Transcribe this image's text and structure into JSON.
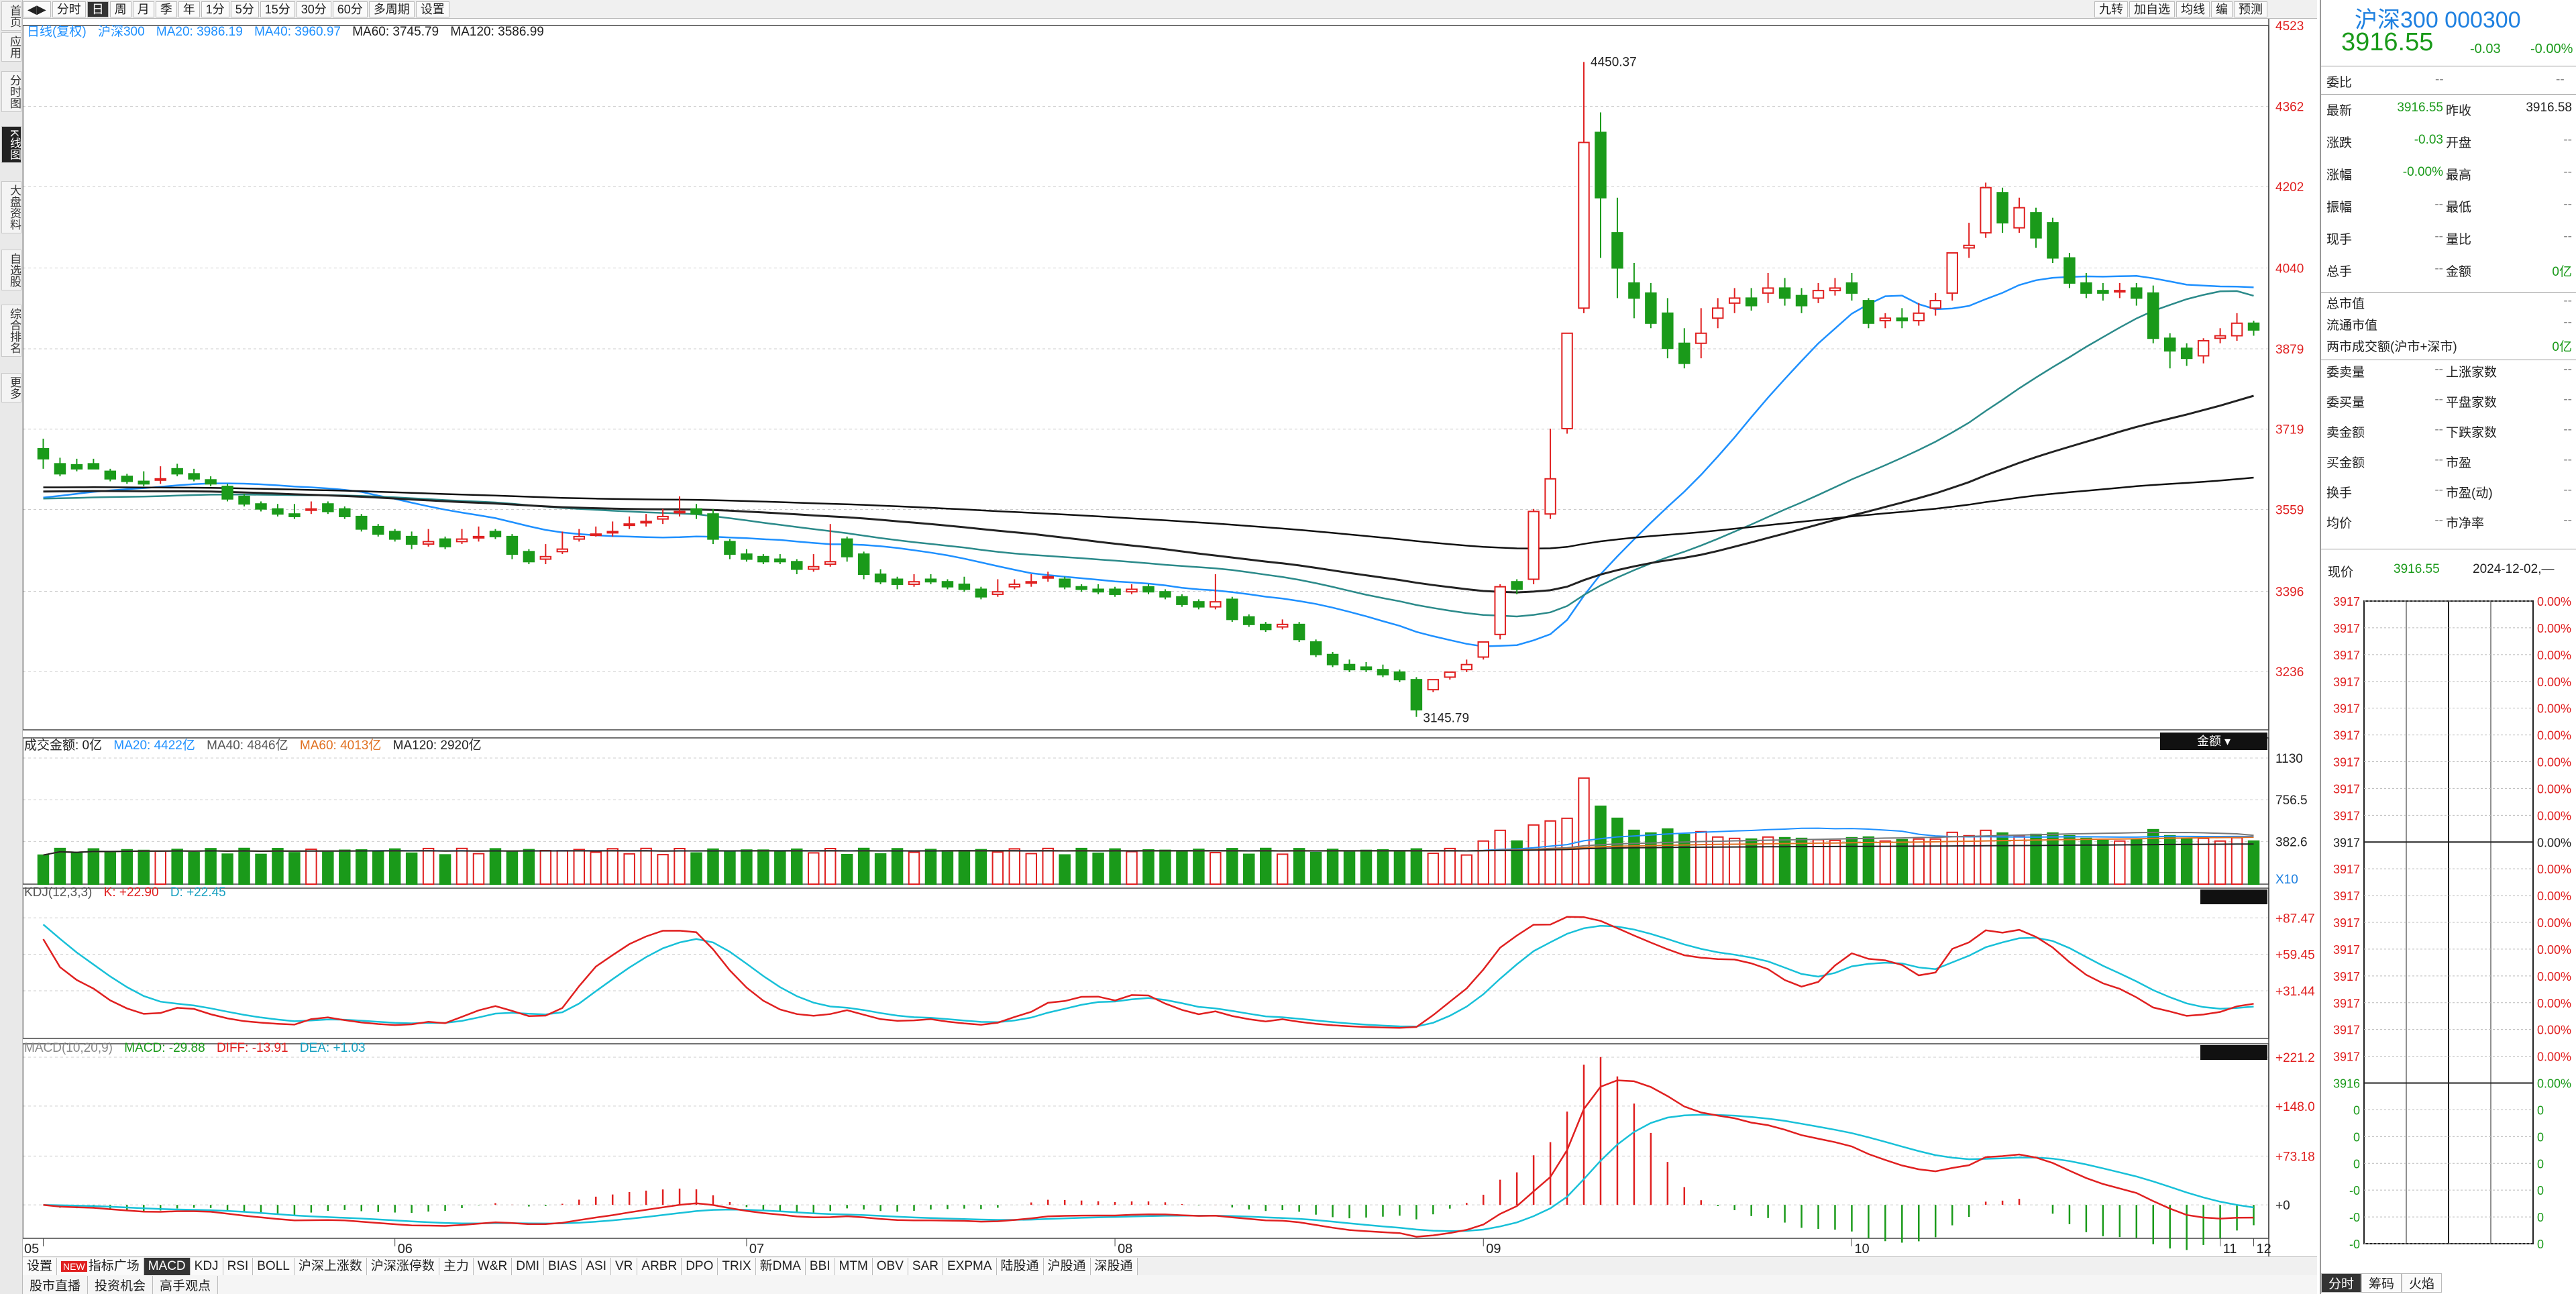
{
  "left_nav": [
    "首页",
    "应用",
    "分时图",
    "K线图",
    "大盘资料",
    "自选股",
    "综合排名",
    "更多"
  ],
  "top_periods": [
    "分时",
    "日",
    "周",
    "月",
    "季",
    "年",
    "1分",
    "5分",
    "15分",
    "30分",
    "60分",
    "多周期",
    "设置"
  ],
  "top_right_tools": [
    "九转",
    "加自选",
    "均线",
    "编",
    "预测"
  ],
  "main_legend": {
    "label": "日线(复权)",
    "name": "沪深300",
    "ma20": "MA20: 3986.19",
    "ma40": "MA40: 3960.97",
    "ma60": "MA60: 3745.79",
    "ma120": "MA120: 3586.99"
  },
  "price_axis": [
    "4523",
    "4362",
    "4202",
    "4040",
    "3879",
    "3719",
    "3559",
    "3396",
    "3236"
  ],
  "price_annotations": {
    "high": "4450.37",
    "low": "3145.79"
  },
  "volume_legend": {
    "label": "成交金额: 0亿",
    "ma20": "MA20: 4422亿",
    "ma40": "MA40: 4846亿",
    "ma60": "MA60: 4013亿",
    "ma120": "MA120: 2920亿"
  },
  "volume_axis": [
    "1130",
    "756.5",
    "382.6",
    "X10"
  ],
  "volume_unit_button": "金额",
  "kdj_legend": {
    "label": "KDJ(12,3,3)",
    "k": "K: +22.90",
    "d": "D: +22.45"
  },
  "kdj_axis": [
    "+87.47",
    "+59.45",
    "+31.44"
  ],
  "macd_legend": {
    "label": "MACD(10,20,9)",
    "macd": "MACD: -29.88",
    "diff": "DIFF: -13.91",
    "dea": "DEA: +1.03"
  },
  "macd_axis": [
    "+221.2",
    "+148.0",
    "+73.18",
    "+0"
  ],
  "month_labels": [
    "05",
    "06",
    "07",
    "08",
    "09",
    "10",
    "11",
    "12"
  ],
  "bottom_tabs": [
    "设置",
    "指标广场",
    "MACD",
    "KDJ",
    "RSI",
    "BOLL",
    "沪深上涨数",
    "沪深涨停数",
    "主力",
    "W&R",
    "DMI",
    "BIAS",
    "ASI",
    "VR",
    "ARBR",
    "DPO",
    "TRIX",
    "新DMA",
    "BBI",
    "MTM",
    "OBV",
    "SAR",
    "EXPMA",
    "陆股通",
    "沪股通",
    "深股通"
  ],
  "bottom_tabs_new_badge": "NEW",
  "bottom_links": [
    "股市直播",
    "投资机会",
    "高手观点"
  ],
  "quote": {
    "title": "沪深300 000300",
    "price": "3916.55",
    "change": "-0.03",
    "pct": "-0.00%",
    "weibi_label": "委比",
    "weibi_val": "--",
    "weicha_val": "--"
  },
  "quote_rows": [
    {
      "l": "最新",
      "v": "3916.55",
      "l2": "昨收",
      "v2": "3916.58"
    },
    {
      "l": "涨跌",
      "v": "-0.03",
      "l2": "开盘",
      "v2": "--"
    },
    {
      "l": "涨幅",
      "v": "-0.00%",
      "l2": "最高",
      "v2": "--"
    },
    {
      "l": "振幅",
      "v": "--",
      "l2": "最低",
      "v2": "--"
    },
    {
      "l": "现手",
      "v": "--",
      "l2": "量比",
      "v2": "--"
    },
    {
      "l": "总手",
      "v": "--",
      "l2": "金额",
      "v2": "0亿"
    }
  ],
  "quote_rows2": [
    {
      "l": "总市值",
      "v": "--"
    },
    {
      "l": "流通市值",
      "v": "--"
    },
    {
      "l": "两市成交额(沪市+深市)",
      "v": "0亿"
    }
  ],
  "quote_rows3": [
    {
      "l": "委卖量",
      "v": "--",
      "l2": "上涨家数",
      "v2": "--"
    },
    {
      "l": "委买量",
      "v": "--",
      "l2": "平盘家数",
      "v2": "--"
    },
    {
      "l": "卖金额",
      "v": "--",
      "l2": "下跌家数",
      "v2": "--"
    },
    {
      "l": "买金额",
      "v": "--",
      "l2": "市盈",
      "v2": "--"
    },
    {
      "l": "换手",
      "v": "--",
      "l2": "市盈(动)",
      "v2": "--"
    },
    {
      "l": "均价",
      "v": "--",
      "l2": "市净率",
      "v2": "--"
    }
  ],
  "xianjia": {
    "label": "现价",
    "value": "3916.55",
    "date": "2024-12-02,—"
  },
  "mini_axis_left": [
    "3917",
    "3917",
    "3917",
    "3917",
    "3917",
    "3917",
    "3917",
    "3917",
    "3917",
    "3917",
    "3917",
    "3917",
    "3917",
    "3917",
    "3917",
    "3917",
    "3917",
    "3917",
    "3916",
    "0",
    "0",
    "0",
    "-0",
    "-0",
    "-0"
  ],
  "mini_axis_right": [
    "0.00%",
    "0.00%",
    "0.00%",
    "0.00%",
    "0.00%",
    "0.00%",
    "0.00%",
    "0.00%",
    "0.00%",
    "0.00%",
    "0.00%",
    "0.00%",
    "0.00%",
    "0.00%",
    "0.00%",
    "0.00%",
    "0.00%",
    "0.00%",
    "0.00%",
    "0",
    "0",
    "0",
    "0",
    "0",
    "0"
  ],
  "right_bottom_tabs": [
    "分时",
    "筹码",
    "火焰"
  ],
  "colors": {
    "up": "#e02020",
    "down": "#1a9a1a",
    "ma20": "#1e90ff",
    "ma40": "#2b8a8a",
    "ma60": "#222222",
    "ma120": "#111111",
    "k": "#e02020",
    "d": "#18c0d8"
  },
  "chart_data": {
    "type": "candlestick",
    "period": "daily",
    "months": [
      "05",
      "06",
      "07",
      "08",
      "09",
      "10",
      "11",
      "12"
    ],
    "ohlc": [
      [
        3680,
        3700,
        3660,
        3640
      ],
      [
        3650,
        3662,
        3630,
        3625
      ],
      [
        3648,
        3660,
        3640,
        3635
      ],
      [
        3650,
        3660,
        3640,
        3640
      ],
      [
        3635,
        3640,
        3620,
        3615
      ],
      [
        3625,
        3630,
        3615,
        3610
      ],
      [
        3615,
        3635,
        3610,
        3605
      ],
      [
        3620,
        3645,
        3620,
        3610
      ],
      [
        3640,
        3650,
        3630,
        3625
      ],
      [
        3630,
        3640,
        3620,
        3615
      ],
      [
        3618,
        3625,
        3610,
        3605
      ],
      [
        3605,
        3610,
        3580,
        3575
      ],
      [
        3585,
        3590,
        3570,
        3565
      ],
      [
        3570,
        3575,
        3560,
        3555
      ],
      [
        3560,
        3570,
        3550,
        3545
      ],
      [
        3550,
        3570,
        3545,
        3540
      ],
      [
        3560,
        3575,
        3560,
        3550
      ],
      [
        3570,
        3575,
        3555,
        3550
      ],
      [
        3560,
        3565,
        3545,
        3540
      ],
      [
        3545,
        3550,
        3520,
        3515
      ],
      [
        3525,
        3530,
        3510,
        3505
      ],
      [
        3515,
        3520,
        3500,
        3495
      ],
      [
        3505,
        3515,
        3490,
        3480
      ],
      [
        3490,
        3520,
        3495,
        3485
      ],
      [
        3500,
        3505,
        3485,
        3480
      ],
      [
        3495,
        3520,
        3500,
        3490
      ],
      [
        3505,
        3525,
        3505,
        3495
      ],
      [
        3515,
        3520,
        3505,
        3500
      ],
      [
        3505,
        3510,
        3470,
        3460
      ],
      [
        3475,
        3480,
        3455,
        3450
      ],
      [
        3460,
        3490,
        3465,
        3450
      ],
      [
        3475,
        3515,
        3480,
        3470
      ],
      [
        3500,
        3520,
        3505,
        3495
      ],
      [
        3510,
        3525,
        3510,
        3505
      ],
      [
        3515,
        3535,
        3515,
        3505
      ],
      [
        3530,
        3545,
        3530,
        3520
      ],
      [
        3535,
        3550,
        3535,
        3525
      ],
      [
        3540,
        3560,
        3545,
        3530
      ],
      [
        3555,
        3585,
        3555,
        3545
      ],
      [
        3560,
        3570,
        3550,
        3540
      ],
      [
        3550,
        3560,
        3500,
        3490
      ],
      [
        3495,
        3500,
        3470,
        3460
      ],
      [
        3470,
        3480,
        3460,
        3455
      ],
      [
        3465,
        3470,
        3455,
        3450
      ],
      [
        3460,
        3470,
        3455,
        3450
      ],
      [
        3455,
        3460,
        3440,
        3430
      ],
      [
        3440,
        3470,
        3445,
        3435
      ],
      [
        3450,
        3530,
        3455,
        3445
      ],
      [
        3500,
        3505,
        3465,
        3455
      ],
      [
        3470,
        3475,
        3430,
        3420
      ],
      [
        3430,
        3440,
        3415,
        3410
      ],
      [
        3420,
        3425,
        3410,
        3400
      ],
      [
        3410,
        3430,
        3415,
        3405
      ],
      [
        3420,
        3430,
        3415,
        3410
      ],
      [
        3415,
        3420,
        3405,
        3400
      ],
      [
        3410,
        3425,
        3400,
        3395
      ],
      [
        3400,
        3405,
        3385,
        3380
      ],
      [
        3390,
        3420,
        3395,
        3385
      ],
      [
        3405,
        3420,
        3410,
        3400
      ],
      [
        3415,
        3430,
        3415,
        3405
      ],
      [
        3425,
        3435,
        3425,
        3415
      ],
      [
        3420,
        3425,
        3405,
        3400
      ],
      [
        3405,
        3410,
        3400,
        3395
      ],
      [
        3400,
        3410,
        3395,
        3390
      ],
      [
        3400,
        3405,
        3390,
        3385
      ],
      [
        3395,
        3410,
        3400,
        3390
      ],
      [
        3405,
        3410,
        3395,
        3390
      ],
      [
        3395,
        3400,
        3385,
        3380
      ],
      [
        3385,
        3390,
        3370,
        3365
      ],
      [
        3375,
        3380,
        3365,
        3360
      ],
      [
        3365,
        3430,
        3375,
        3360
      ],
      [
        3380,
        3385,
        3340,
        3335
      ],
      [
        3345,
        3350,
        3330,
        3325
      ],
      [
        3330,
        3335,
        3320,
        3315
      ],
      [
        3325,
        3340,
        3330,
        3320
      ],
      [
        3330,
        3335,
        3300,
        3295
      ],
      [
        3295,
        3300,
        3270,
        3265
      ],
      [
        3270,
        3275,
        3250,
        3245
      ],
      [
        3250,
        3260,
        3240,
        3235
      ],
      [
        3245,
        3255,
        3240,
        3235
      ],
      [
        3240,
        3250,
        3230,
        3225
      ],
      [
        3235,
        3240,
        3220,
        3215
      ],
      [
        3220,
        3225,
        3160,
        3145.79
      ],
      [
        3200,
        3215,
        3220,
        3195
      ],
      [
        3225,
        3235,
        3235,
        3220
      ],
      [
        3240,
        3260,
        3250,
        3235
      ],
      [
        3265,
        3290,
        3295,
        3260
      ],
      [
        3310,
        3410,
        3405,
        3300
      ],
      [
        3415,
        3420,
        3400,
        3390
      ],
      [
        3420,
        3560,
        3555,
        3410
      ],
      [
        3550,
        3720,
        3620,
        3540
      ],
      [
        3720,
        3910,
        3910,
        3710
      ],
      [
        3960,
        4450.37,
        4290,
        3950
      ],
      [
        4310,
        4350,
        4180,
        4060
      ],
      [
        4110,
        4180,
        4040,
        3980
      ],
      [
        4010,
        4050,
        3980,
        3940
      ],
      [
        3990,
        4010,
        3930,
        3920
      ],
      [
        3950,
        3980,
        3880,
        3860
      ],
      [
        3890,
        3920,
        3850,
        3840
      ],
      [
        3890,
        3960,
        3910,
        3860
      ],
      [
        3940,
        3980,
        3960,
        3920
      ],
      [
        3970,
        4000,
        3980,
        3950
      ],
      [
        3980,
        4000,
        3965,
        3955
      ],
      [
        3990,
        4030,
        4000,
        3970
      ],
      [
        4000,
        4020,
        3980,
        3965
      ],
      [
        3985,
        4000,
        3965,
        3950
      ],
      [
        3980,
        4010,
        3995,
        3970
      ],
      [
        3995,
        4020,
        4000,
        3985
      ],
      [
        4010,
        4030,
        3990,
        3975
      ],
      [
        3975,
        3980,
        3930,
        3920
      ],
      [
        3935,
        3950,
        3940,
        3920
      ],
      [
        3940,
        3960,
        3935,
        3920
      ],
      [
        3935,
        3970,
        3950,
        3925
      ],
      [
        3960,
        3990,
        3975,
        3945
      ],
      [
        3990,
        4070,
        4070,
        3975
      ],
      [
        4080,
        4130,
        4085,
        4060
      ],
      [
        4110,
        4210,
        4200,
        4100
      ],
      [
        4190,
        4200,
        4130,
        4110
      ],
      [
        4120,
        4180,
        4160,
        4110
      ],
      [
        4150,
        4160,
        4100,
        4080
      ],
      [
        4130,
        4140,
        4060,
        4050
      ],
      [
        4060,
        4070,
        4010,
        4000
      ],
      [
        4010,
        4030,
        3990,
        3980
      ],
      [
        3995,
        4010,
        3990,
        3975
      ],
      [
        3995,
        4010,
        3995,
        3980
      ],
      [
        4000,
        4010,
        3980,
        3965
      ],
      [
        3990,
        4005,
        3900,
        3890
      ],
      [
        3900,
        3910,
        3875,
        3840
      ],
      [
        3880,
        3890,
        3860,
        3845
      ],
      [
        3865,
        3900,
        3895,
        3850
      ],
      [
        3900,
        3920,
        3905,
        3890
      ],
      [
        3905,
        3950,
        3930,
        3895
      ],
      [
        3930,
        3935,
        3916.55,
        3905
      ]
    ]
  }
}
